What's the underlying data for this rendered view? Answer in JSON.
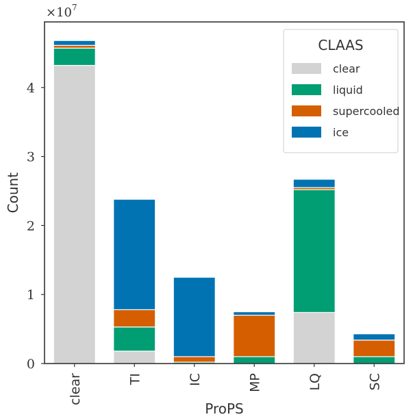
{
  "chart_data": {
    "type": "bar",
    "stacked": true,
    "xlabel": "ProPS",
    "ylabel": "Count",
    "multiplier_base": "×10",
    "multiplier_exp": "7",
    "categories": [
      "clear",
      "TI",
      "IC",
      "MP",
      "LQ",
      "SC"
    ],
    "yticks": [
      0,
      1,
      2,
      3,
      4
    ],
    "ylim": [
      0,
      4.95
    ],
    "legend": {
      "title": "CLAAS",
      "position": "top-right"
    },
    "grid": false,
    "series": [
      {
        "name": "clear",
        "color": "#d3d3d3",
        "values": [
          4.32,
          0.18,
          0.0,
          0.0,
          0.74,
          0.0
        ]
      },
      {
        "name": "liquid",
        "color": "#029e73",
        "values": [
          0.25,
          0.35,
          0.02,
          0.1,
          1.78,
          0.1
        ]
      },
      {
        "name": "supercooled",
        "color": "#d55e00",
        "values": [
          0.04,
          0.25,
          0.08,
          0.6,
          0.03,
          0.24
        ]
      },
      {
        "name": "ice",
        "color": "#0173b2",
        "values": [
          0.07,
          1.6,
          1.15,
          0.05,
          0.12,
          0.09
        ]
      }
    ]
  }
}
